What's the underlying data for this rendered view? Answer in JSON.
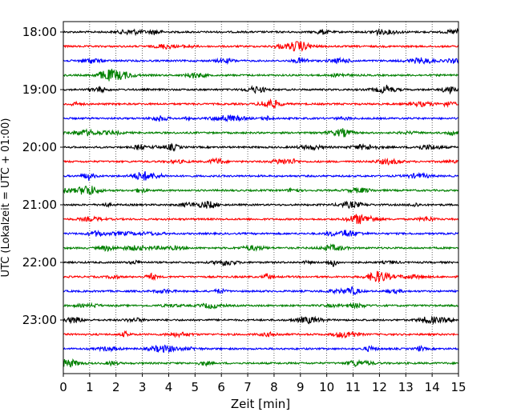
{
  "chart_data": {
    "type": "line",
    "title": "",
    "xlabel": "Zeit  [min]",
    "ylabel": "UTC (Lokalzeit = UTC + 01:00)",
    "xlim": [
      0,
      15
    ],
    "x_ticks": [
      0,
      1,
      2,
      3,
      4,
      5,
      6,
      7,
      8,
      9,
      10,
      11,
      12,
      13,
      14,
      15
    ],
    "x_tick_labels": [
      "0",
      "1",
      "2",
      "3",
      "4",
      "5",
      "6",
      "7",
      "8",
      "9",
      "10",
      "11",
      "12",
      "13",
      "14",
      "15"
    ],
    "grid": "vertical dotted at each minute",
    "y_tick_labels": [
      "18:00",
      "19:00",
      "20:00",
      "21:00",
      "22:00",
      "23:00"
    ],
    "y_tick_row_index": [
      0,
      4,
      8,
      12,
      16,
      20
    ],
    "trace_start_times": [
      "18:00",
      "18:15",
      "18:30",
      "18:45",
      "19:00",
      "19:15",
      "19:30",
      "19:45",
      "20:00",
      "20:15",
      "20:30",
      "20:45",
      "21:00",
      "21:15",
      "21:30",
      "21:45",
      "22:00",
      "22:15",
      "22:30",
      "22:45",
      "23:00",
      "23:15",
      "23:30",
      "23:45"
    ],
    "trace_colors_cycle": [
      "#000000",
      "#ff0000",
      "#0000ff",
      "#008000"
    ],
    "trace_duration_min": 15,
    "trace_count": 24
  }
}
